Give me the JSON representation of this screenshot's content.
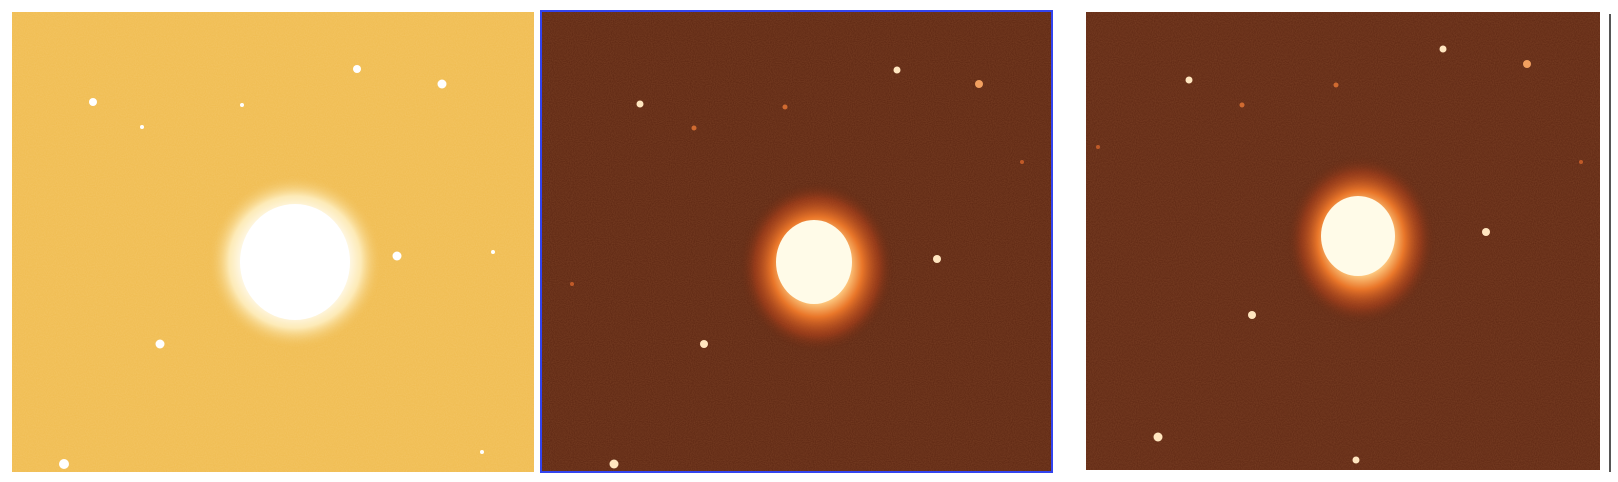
{
  "figure": {
    "panels": [
      {
        "id": "panel-1",
        "colormap": "gold-white",
        "background_color": "#f0bb4e",
        "core_color": "#ffffff",
        "halo_color": "#fff2c8",
        "selected": false
      },
      {
        "id": "panel-2",
        "colormap": "heat",
        "background_color": "#5a2410",
        "core_color": "#fffbe8",
        "halo_color": "#f07a2a",
        "selected": true,
        "selection_color": "#3344ee"
      },
      {
        "id": "panel-3",
        "colormap": "heat",
        "background_color": "#5c2511",
        "core_color": "#fffbe8",
        "halo_color": "#f07a2a",
        "selected": false
      }
    ]
  }
}
